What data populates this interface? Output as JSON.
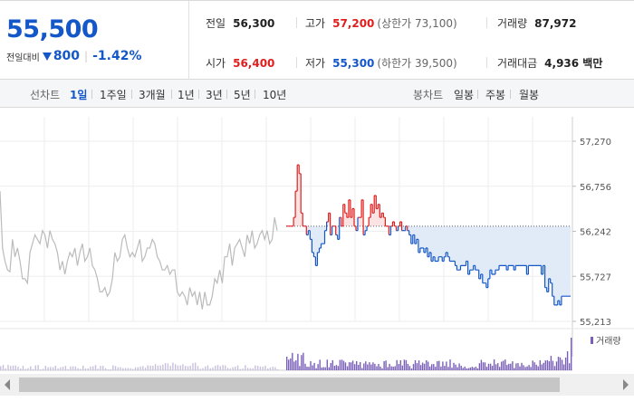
{
  "summary": {
    "current_price": "55,500",
    "change_label": "전일대비",
    "change_value": "800",
    "change_pct": "-1.42%",
    "prev_close": {
      "label": "전일",
      "value": "56,300"
    },
    "high": {
      "label": "고가",
      "value": "57,200",
      "sub": "(상한가 73,100)"
    },
    "volume": {
      "label": "거래량",
      "value": "87,972"
    },
    "open": {
      "label": "시가",
      "value": "56,400"
    },
    "low": {
      "label": "저가",
      "value": "55,300",
      "sub": "(하한가 39,500)"
    },
    "amount": {
      "label": "거래대금",
      "value": "4,936 백만"
    }
  },
  "tabs": {
    "line_label": "선차트",
    "line_periods": [
      "1일",
      "1주일",
      "3개월",
      "1년",
      "3년",
      "5년",
      "10년"
    ],
    "active_period": "1일",
    "candle_label": "봉차트",
    "candle_periods": [
      "일봉",
      "주봉",
      "월봉"
    ]
  },
  "colors": {
    "up": "#e01e1e",
    "down": "#1457c9",
    "prev_day": "#bbbbbb",
    "volume": "#7a5fb8"
  },
  "chart_data": {
    "type": "line",
    "y_ticks": [
      "57,270",
      "56,756",
      "56,242",
      "55,727",
      "55,213"
    ],
    "ylim": [
      55213,
      57270
    ],
    "base_price": 56300,
    "volume_legend": "거래량",
    "series": [
      {
        "values": [
          56700,
          56050,
          55900,
          55800,
          55780,
          56150,
          55950,
          56050,
          55900,
          55700,
          55700,
          55650,
          56000,
          56100,
          56200,
          56150,
          56100,
          56250,
          56200,
          56050,
          56250,
          56150,
          56100,
          56000,
          55800,
          55900,
          55750,
          55900,
          56000,
          55950,
          56050,
          55850,
          56000,
          56100,
          55900,
          55950,
          56050,
          55850,
          55800,
          55700,
          55550,
          55550,
          55600,
          55500,
          55550,
          55700,
          56000,
          55900,
          55950,
          56150,
          56200,
          56050,
          55950,
          56000,
          55950,
          56050,
          56150,
          55900,
          55950,
          56050,
          56050,
          56150,
          56100,
          55950,
          55900,
          55800,
          55800,
          55850,
          55750,
          55800,
          55800,
          55550,
          55500,
          55550,
          55500,
          55400,
          55600,
          55500,
          55550,
          55400,
          55550,
          55350,
          55550,
          55400,
          55400,
          55500,
          55700,
          55650,
          55800,
          55650,
          55950,
          55950,
          56100,
          55850,
          56050,
          56100,
          56150,
          56050,
          55950,
          56200,
          56100,
          56250,
          56050,
          56100,
          56200,
          56250,
          56150,
          56250,
          56100,
          56150,
          56400,
          56250
        ]
      },
      {
        "values": [
          56300,
          56300,
          56300,
          56300,
          56400,
          56700,
          57000,
          56900,
          56450,
          56300,
          56300,
          56200,
          56250,
          56150,
          56000,
          55950,
          55850,
          56000,
          56050,
          56100,
          56100,
          56250,
          56350,
          56450,
          56200,
          56300,
          56300,
          56200,
          56150,
          56400,
          56300,
          56550,
          56450,
          56400,
          56600,
          56400,
          56500,
          56300,
          56250,
          56400,
          56400,
          56600,
          56200,
          56250,
          56300,
          56400,
          56550,
          56450,
          56650,
          56500,
          56550,
          56400,
          56450,
          56400,
          56300,
          56300,
          56200,
          56300,
          56350,
          56300,
          56250,
          56300,
          56350,
          56250,
          56250,
          56300,
          56250,
          56200,
          56100,
          56200,
          56100,
          56150,
          56000,
          56050,
          56050,
          56000,
          56050,
          55950,
          56000,
          55900,
          55950,
          55900,
          55900,
          55950,
          55950,
          55900,
          55950,
          56000,
          55950,
          55900,
          55900,
          55900,
          55850,
          55800,
          55800,
          55850,
          55850,
          55850,
          55900,
          55750,
          55800,
          55800,
          55850,
          55800,
          55800,
          55700,
          55750,
          55650,
          55650,
          55600,
          55700,
          55800,
          55750,
          55750,
          55800,
          55800,
          55850,
          55850,
          55850,
          55850,
          55800,
          55850,
          55850,
          55850,
          55800,
          55850,
          55850,
          55850,
          55850,
          55850,
          55850,
          55750,
          55850,
          55850,
          55850,
          55850,
          55850,
          55850,
          55850,
          55750,
          55850,
          55600,
          55550,
          55700,
          55650,
          55500,
          55400,
          55400,
          55450,
          55400,
          55500,
          55500,
          55500,
          55500,
          55500,
          55500
        ]
      }
    ]
  }
}
